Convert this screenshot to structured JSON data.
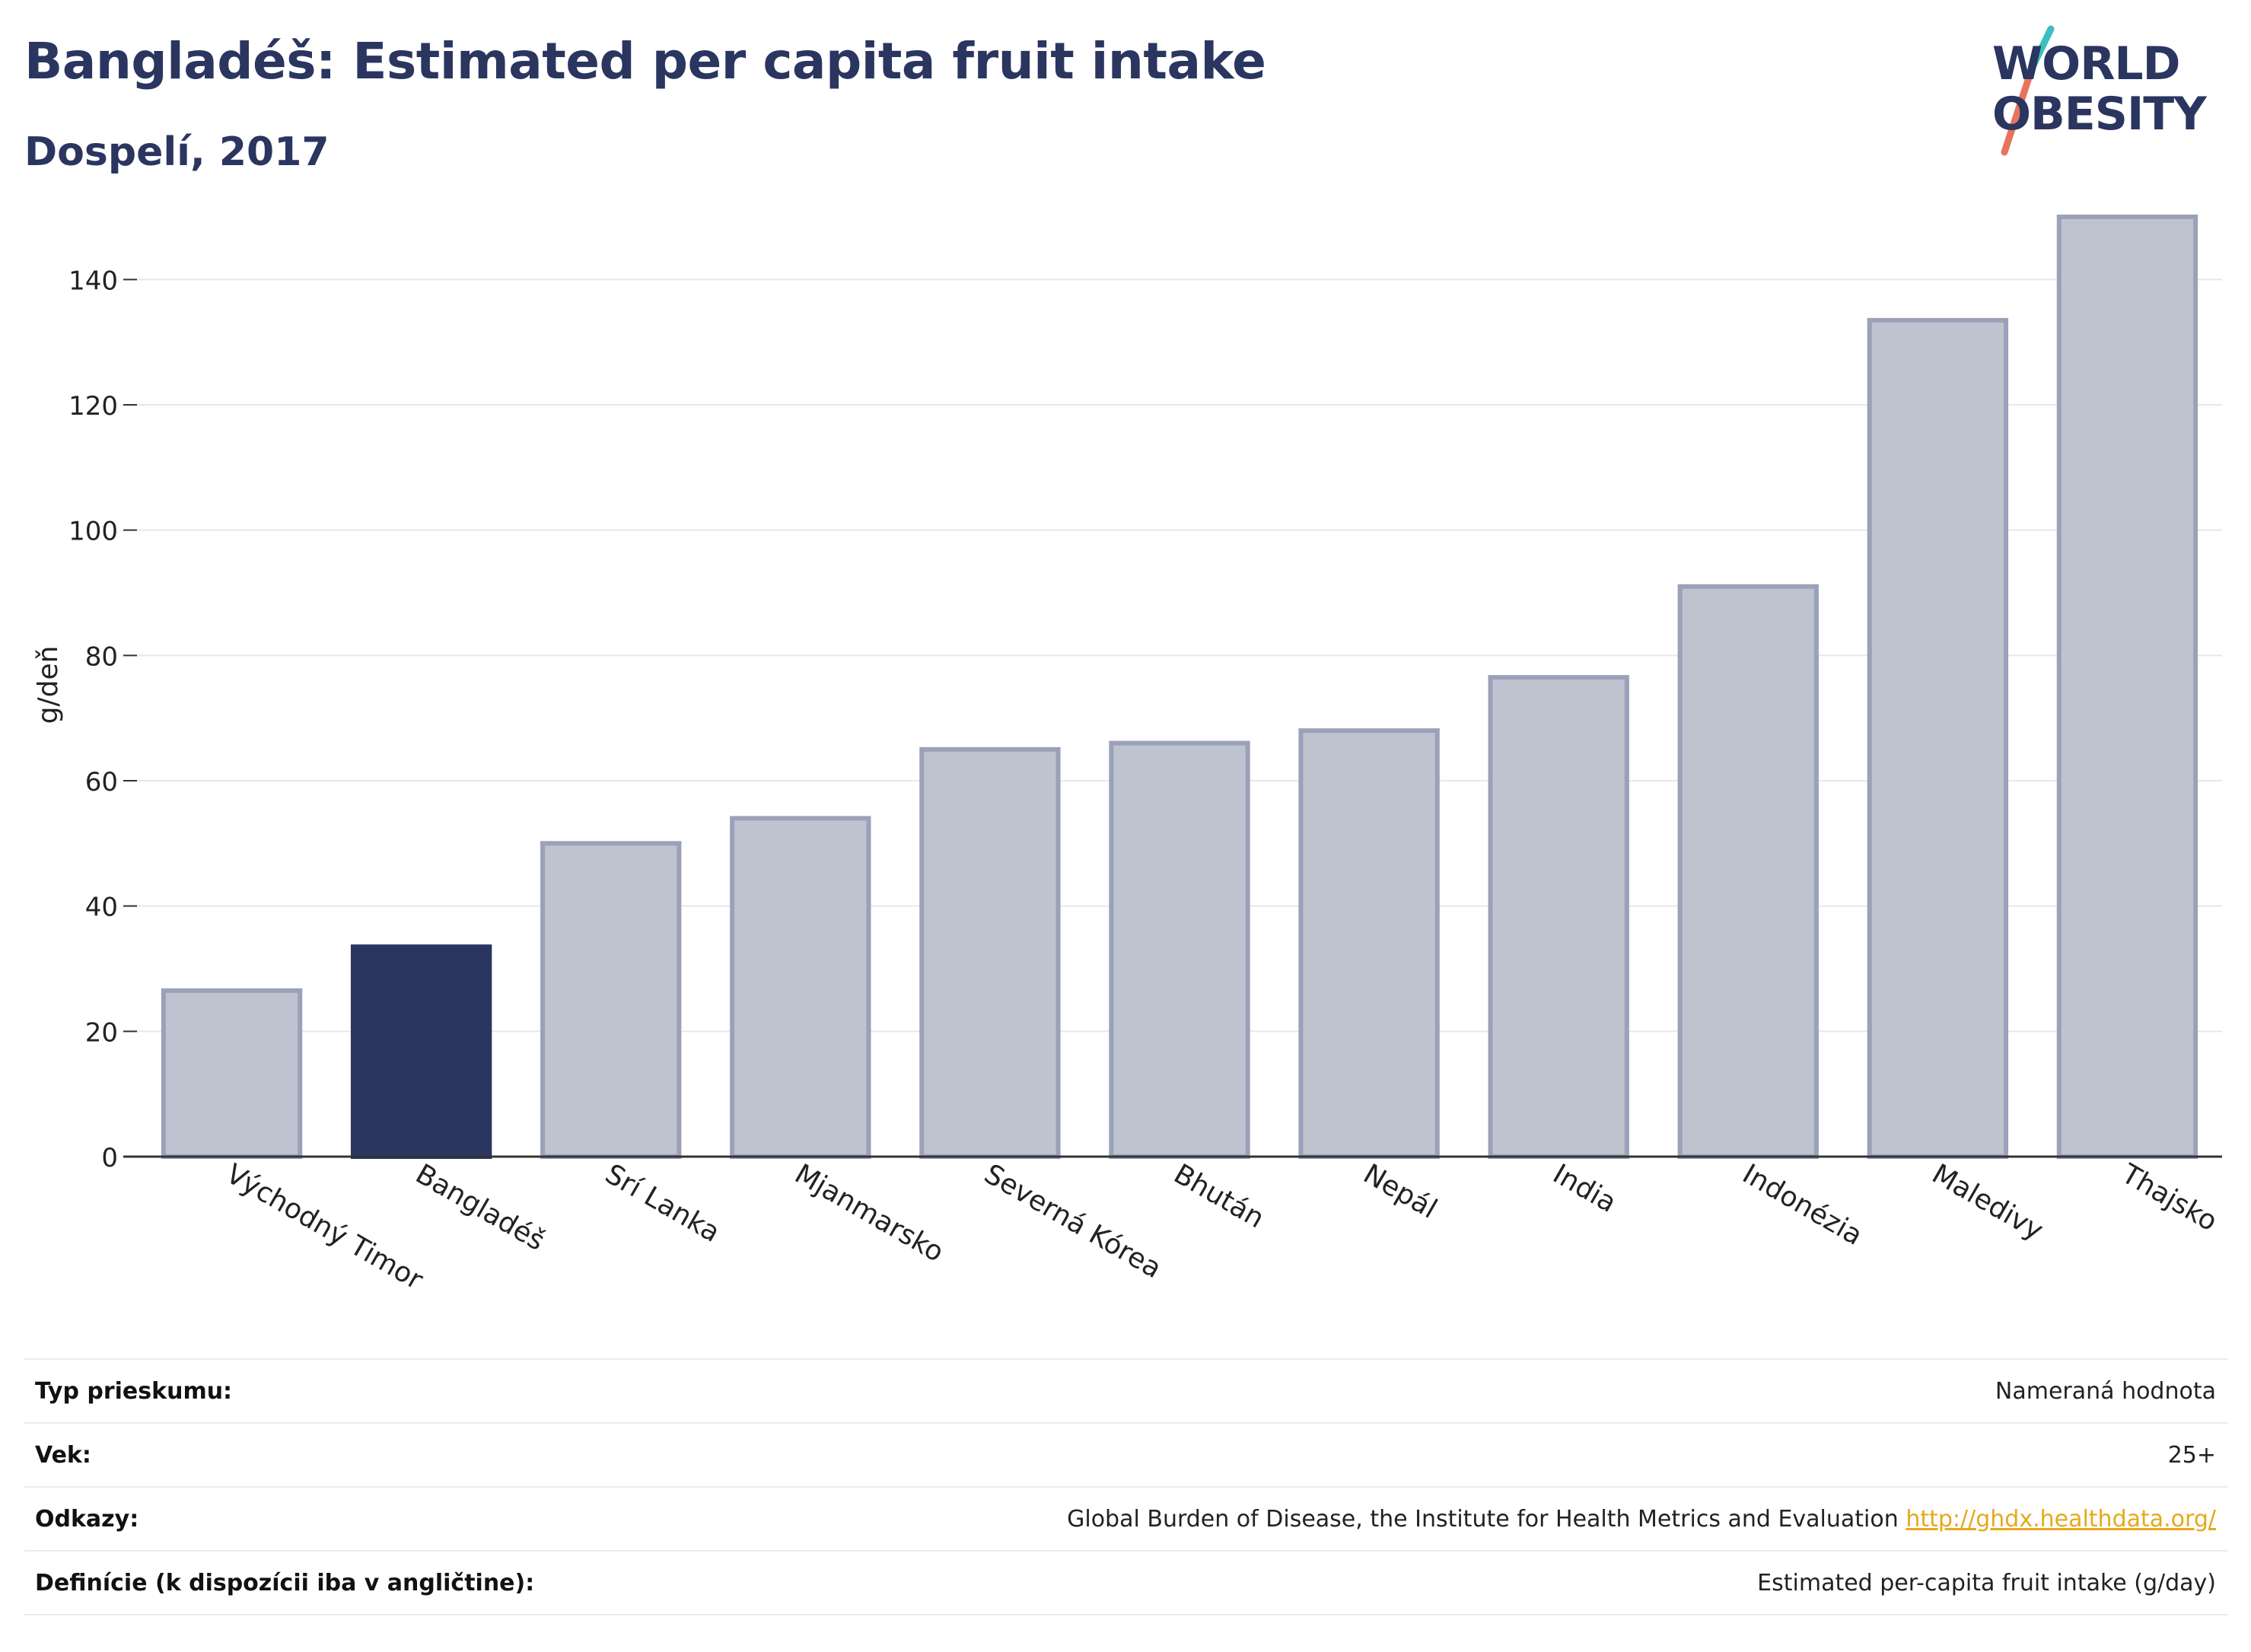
{
  "header": {
    "title": "Bangladéš: Estimated per capita fruit intake",
    "subtitle": "Dospelí, 2017"
  },
  "logo": {
    "line1": "WORLD",
    "line2": "OBESITY",
    "colors": {
      "text": "#2a3560",
      "slash_top": "#3bbfc1",
      "slash_bottom": "#e8735e"
    }
  },
  "colors": {
    "highlight_bar": "#2a3560",
    "other_bar_fill": "#bfc3d0",
    "other_bar_stroke": "#9aa1b8",
    "grid": "#e6e8ec",
    "axis": "#333333",
    "link": "#e5a91d"
  },
  "chart_data": {
    "type": "bar",
    "title": "Bangladéš: Estimated per capita fruit intake",
    "subtitle": "Dospelí, 2017",
    "xlabel": "",
    "ylabel": "g/deň",
    "ylim": [
      0,
      150
    ],
    "yticks": [
      0,
      20,
      40,
      60,
      80,
      100,
      120,
      140
    ],
    "grid": true,
    "highlight": "Bangladéš",
    "categories": [
      "Východný Timor",
      "Bangladéš",
      "Srí Lanka",
      "Mjanmarsko",
      "Severná Kórea",
      "Bhután",
      "Nepál",
      "India",
      "Indonézia",
      "Maledivy",
      "Thajsko"
    ],
    "values": [
      26.5,
      33.5,
      50,
      54,
      65,
      66,
      68,
      76.5,
      91,
      133.5,
      150
    ]
  },
  "meta": {
    "rows": [
      {
        "label": "Typ prieskumu:",
        "value": "Nameraná hodnota"
      },
      {
        "label": "Vek:",
        "value": "25+"
      },
      {
        "label": "Odkazy:",
        "value": "Global Burden of Disease, the Institute for Health Metrics and Evaluation",
        "link": "http://ghdx.healthdata.org/"
      },
      {
        "label": "Definície (k dispozícii iba v angličtine):",
        "value": "Estimated per-capita fruit intake (g/day)"
      }
    ]
  }
}
